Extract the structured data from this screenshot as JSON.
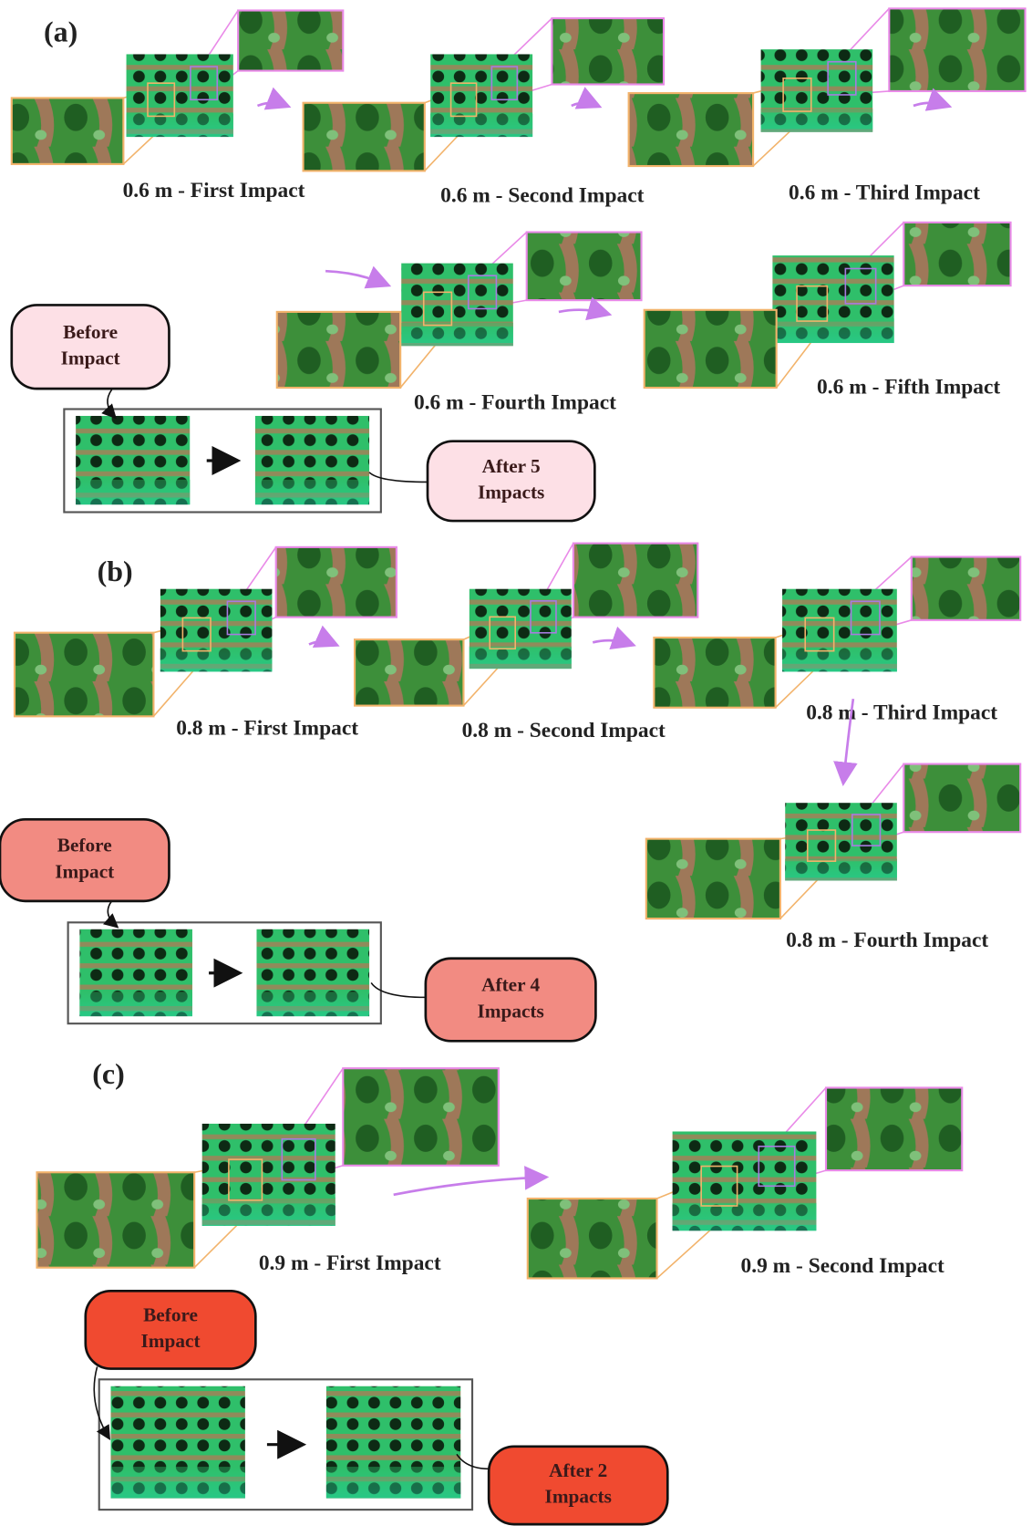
{
  "panels": [
    {
      "label": "(a)",
      "stages": [
        "0.6 m - First Impact",
        "0.6 m - Second Impact",
        "0.6 m - Third Impact",
        "0.6 m - Fourth Impact",
        "0.6 m - Fifth Impact"
      ],
      "before": [
        "Before",
        "Impact"
      ],
      "after": [
        "After 5",
        "Impacts"
      ]
    },
    {
      "label": "(b)",
      "stages": [
        "0.8 m - First Impact",
        "0.8 m - Second Impact",
        "0.8 m - Third Impact",
        "0.8 m - Fourth Impact"
      ],
      "before": [
        "Before",
        "Impact"
      ],
      "after": [
        "After 4",
        "Impacts"
      ]
    },
    {
      "label": "(c)",
      "stages": [
        "0.9 m - First Impact",
        "0.9 m - Second Impact"
      ],
      "before": [
        "Before",
        "Impact"
      ],
      "after": [
        "After 2",
        "Impacts"
      ]
    }
  ]
}
